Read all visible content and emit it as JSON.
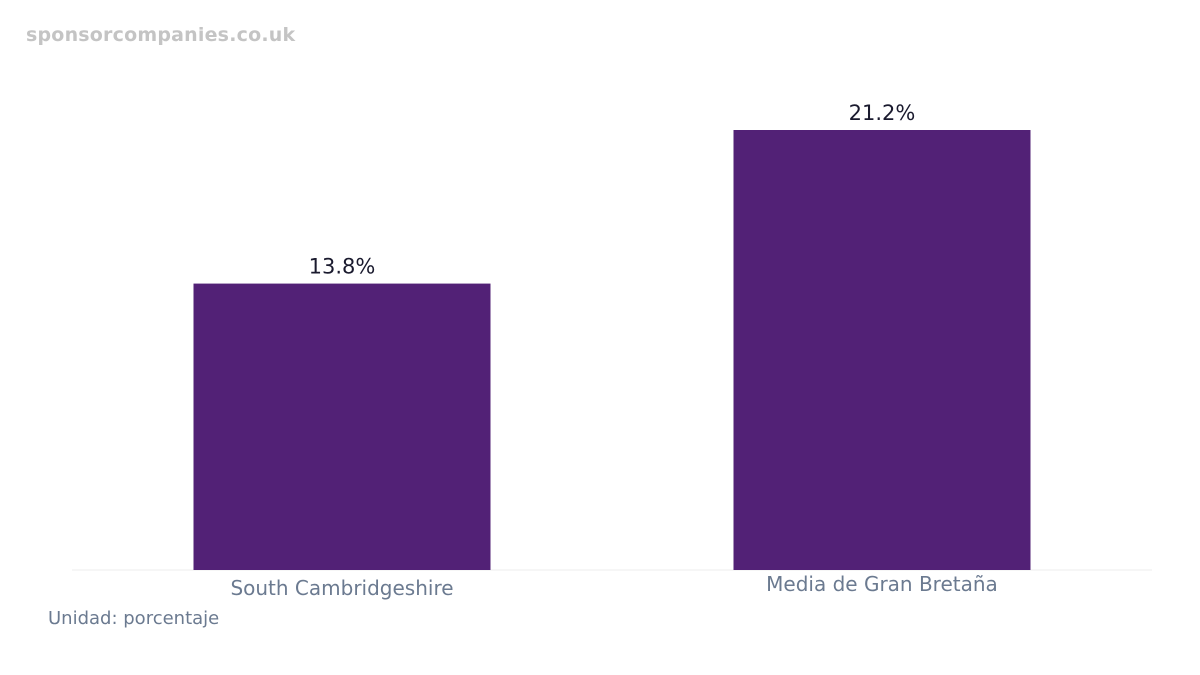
{
  "watermark": "sponsorcompanies.co.uk",
  "unit_note": "Unidad: porcentaje",
  "colors": {
    "bar": "#522176",
    "value_label": "#1a1a2e",
    "category_label": "#6b7a90",
    "baseline": "#eeeeee"
  },
  "chart_data": {
    "type": "bar",
    "categories": [
      "South Cambridgeshire",
      "Media de Gran Bretaña"
    ],
    "values": [
      13.8,
      21.2
    ],
    "value_labels": [
      "13.8%",
      "21.2%"
    ],
    "title": "",
    "xlabel": "",
    "ylabel": "",
    "ylim": [
      0,
      21.2
    ],
    "grid": false,
    "legend": "none"
  }
}
